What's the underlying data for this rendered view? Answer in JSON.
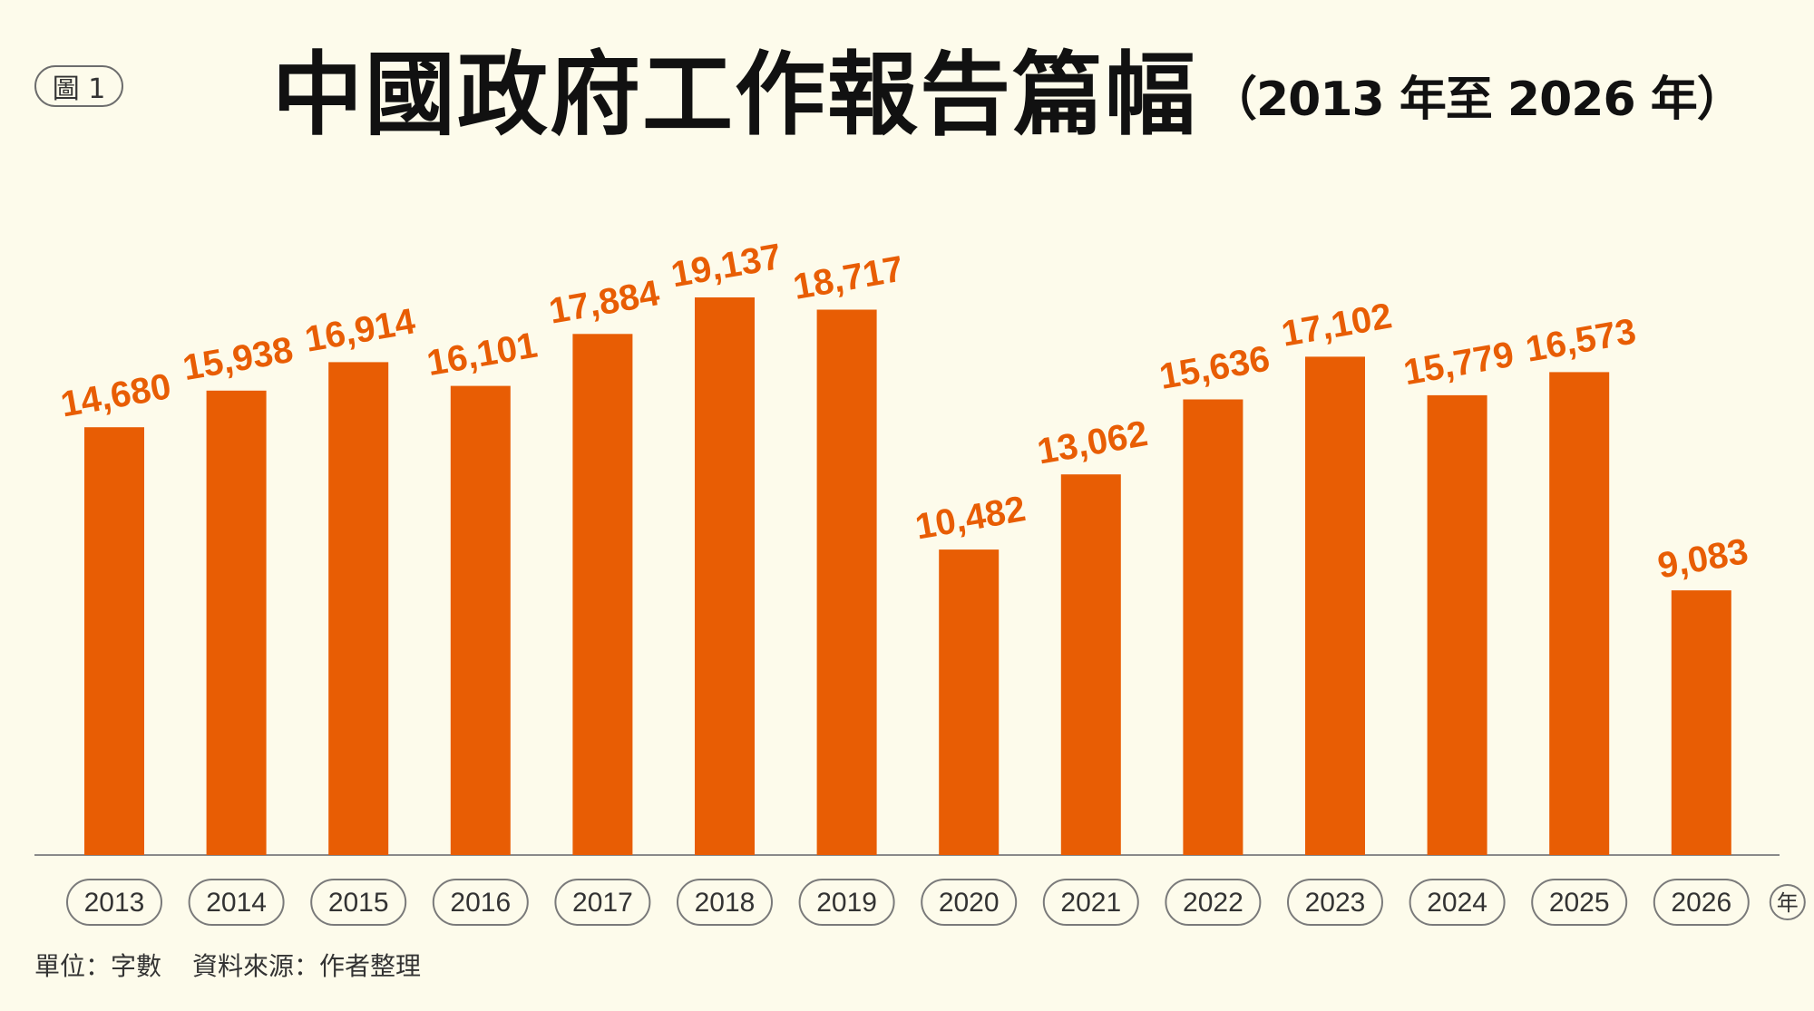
{
  "figure_label": "圖 1",
  "title": "中國政府工作報告篇幅",
  "subtitle": "（2013 年至 2026 年）",
  "footnote": {
    "unit": "單位：字數",
    "source": "資料來源：作者整理"
  },
  "colors": {
    "bar": "#e85d04",
    "label": "#e85d04",
    "background": "#fdfbeb",
    "axis": "#8a8a8a",
    "tick_pill_border": "#7a7a7a",
    "tick_text": "#333333"
  },
  "chart_data": {
    "type": "bar",
    "title": "中國政府工作報告篇幅（2013 年至 2026 年）",
    "xlabel": "年",
    "ylabel": "字數",
    "ylim": [
      0,
      19137
    ],
    "categories": [
      "2013",
      "2014",
      "2015",
      "2016",
      "2017",
      "2018",
      "2019",
      "2020",
      "2021",
      "2022",
      "2023",
      "2024",
      "2025",
      "2026"
    ],
    "values": [
      14680,
      15938,
      16914,
      16101,
      17884,
      19137,
      18717,
      10482,
      13062,
      15636,
      17102,
      15779,
      16573,
      9083
    ],
    "value_labels": [
      "14,680",
      "15,938",
      "16,914",
      "16,101",
      "17,884",
      "19,137",
      "18,717",
      "10,482",
      "13,062",
      "15,636",
      "17,102",
      "15,779",
      "16,573",
      "9,083"
    ],
    "grid": false,
    "legend": "none"
  }
}
